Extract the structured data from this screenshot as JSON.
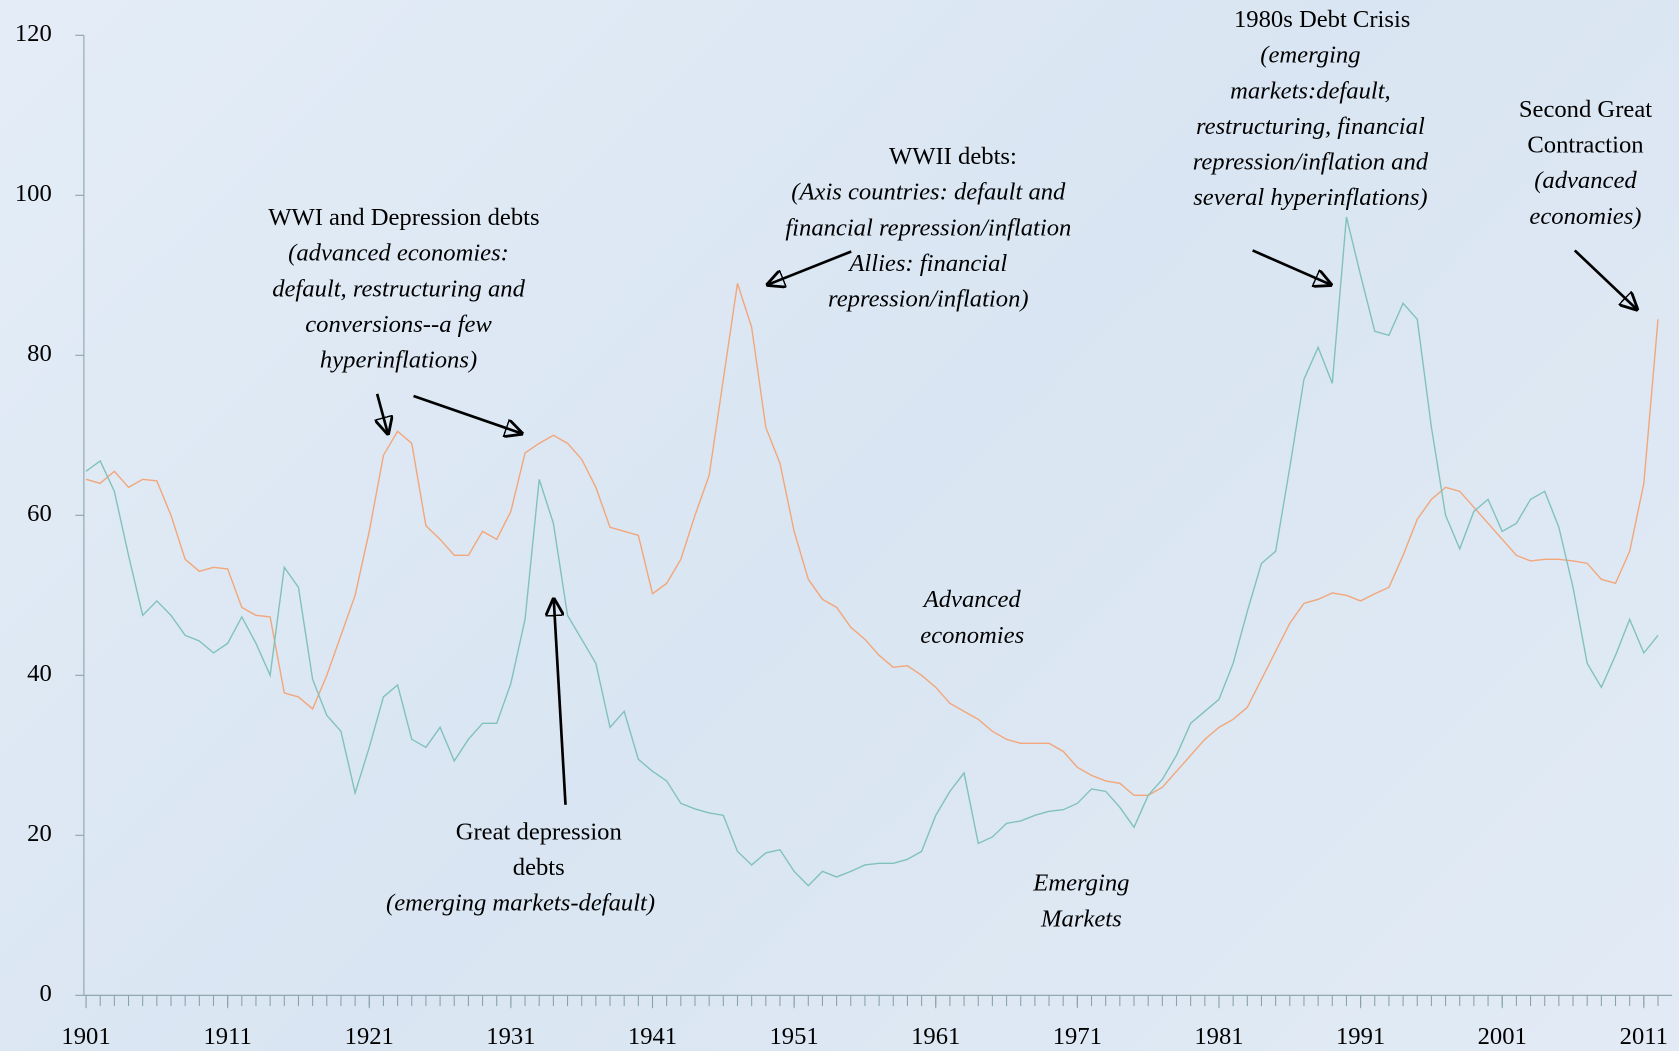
{
  "chart_data": {
    "type": "line",
    "x": [
      1901,
      1902,
      1903,
      1904,
      1905,
      1906,
      1907,
      1908,
      1909,
      1910,
      1911,
      1912,
      1913,
      1914,
      1915,
      1916,
      1917,
      1918,
      1919,
      1920,
      1921,
      1922,
      1923,
      1924,
      1925,
      1926,
      1927,
      1928,
      1929,
      1930,
      1931,
      1932,
      1933,
      1934,
      1935,
      1936,
      1937,
      1938,
      1939,
      1940,
      1941,
      1942,
      1943,
      1944,
      1945,
      1946,
      1947,
      1948,
      1949,
      1950,
      1951,
      1952,
      1953,
      1954,
      1955,
      1956,
      1957,
      1958,
      1959,
      1960,
      1961,
      1962,
      1963,
      1964,
      1965,
      1966,
      1967,
      1968,
      1969,
      1970,
      1971,
      1972,
      1973,
      1974,
      1975,
      1976,
      1977,
      1978,
      1979,
      1980,
      1981,
      1982,
      1983,
      1984,
      1985,
      1986,
      1987,
      1988,
      1989,
      1990,
      1991,
      1992,
      1993,
      1994,
      1995,
      1996,
      1997,
      1998,
      1999,
      2000,
      2001,
      2002,
      2003,
      2004,
      2005,
      2006,
      2007,
      2008,
      2009,
      2010,
      2011,
      2012
    ],
    "series": [
      {
        "name": "Advanced economies",
        "color": "#f2a679",
        "values": [
          64.5,
          64,
          65.5,
          63.5,
          64.5,
          64.3,
          60,
          54.5,
          53,
          53.5,
          53.3,
          48.5,
          47.5,
          47.3,
          37.8,
          37.3,
          35.8,
          40,
          45,
          50,
          58,
          67.5,
          70.5,
          69,
          58.7,
          57,
          55,
          55,
          58,
          57,
          60.5,
          67.8,
          69,
          70,
          69,
          67,
          63.5,
          58.5,
          58,
          57.5,
          50.2,
          51.5,
          54.5,
          60,
          65,
          77,
          89,
          83.5,
          71,
          66.5,
          58,
          52,
          49.5,
          48.5,
          46,
          44.5,
          42.5,
          41,
          41.2,
          40,
          38.5,
          36.5,
          35.5,
          34.5,
          33,
          32,
          31.5,
          31.5,
          31.5,
          30.5,
          28.5,
          27.5,
          26.8,
          26.5,
          25,
          25,
          26,
          28,
          30,
          32,
          33.5,
          34.5,
          36,
          39.5,
          43,
          46.5,
          49,
          49.5,
          50.3,
          50,
          49.3,
          50.2,
          51,
          55,
          59.5,
          62,
          63.5,
          63,
          61,
          59,
          57,
          55,
          54.3,
          54.5,
          54.5,
          54.3,
          54,
          52,
          51.5,
          55.5,
          64,
          84.5
        ]
      },
      {
        "name": "Emerging Markets",
        "color": "#80c2bb",
        "values": [
          65.5,
          66.8,
          63,
          55,
          47.5,
          49.3,
          47.5,
          45,
          44.3,
          42.8,
          44,
          47.3,
          44,
          40,
          53.5,
          51,
          39.5,
          35,
          33,
          25.3,
          31,
          37.3,
          38.8,
          32,
          31,
          33.5,
          29.3,
          32,
          34,
          34,
          39,
          47,
          64.5,
          59,
          47.5,
          44.5,
          41.5,
          33.5,
          35.5,
          29.5,
          28,
          26.8,
          24,
          23.3,
          22.8,
          22.5,
          18,
          16.3,
          17.8,
          18.2,
          15.5,
          13.7,
          15.5,
          14.8,
          15.5,
          16.3,
          16.5,
          16.5,
          17,
          18,
          22.5,
          25.5,
          27.8,
          19,
          19.8,
          21.5,
          21.8,
          22.5,
          23,
          23.2,
          24,
          25.8,
          25.5,
          23.5,
          21,
          25,
          27,
          30,
          34,
          35.5,
          37,
          41.5,
          48,
          54,
          55.5,
          66,
          77,
          81,
          76.5,
          97.3,
          90,
          83,
          82.5,
          86.5,
          84.5,
          71,
          60,
          55.8,
          60.5,
          62,
          58,
          59,
          62,
          63,
          58.5,
          51,
          41.5,
          38.5,
          42.5,
          47,
          42.8,
          45
        ]
      }
    ],
    "xlim": [
      1901,
      2013
    ],
    "xticks": [
      1901,
      1911,
      1921,
      1931,
      1941,
      1951,
      1961,
      1971,
      1981,
      1991,
      2001,
      2011
    ],
    "ylim": [
      0,
      120
    ],
    "yticks": [
      0,
      20,
      40,
      60,
      80,
      100,
      120
    ],
    "annotations": [
      {
        "title": [
          "WWI and Depression debts"
        ],
        "note": [
          "(advanced economies:",
          "default, restructuring and",
          "conversions--a few",
          "hyperinflations)"
        ]
      },
      {
        "title": [
          "WWII debts:"
        ],
        "note": [
          "(Axis countries: default and",
          "financial repression/inflation",
          "Allies: financial",
          "repression/inflation)"
        ]
      },
      {
        "title": [
          "1980s Debt Crisis"
        ],
        "note": [
          "(emerging",
          "markets:default,",
          "restructuring, financial",
          "repression/inflation and",
          "several hyperinflations)"
        ]
      },
      {
        "title": [
          "Second Great",
          "Contraction"
        ],
        "note": [
          "(advanced",
          "economies)"
        ]
      },
      {
        "title": [
          "Great depression",
          "debts"
        ],
        "note": [
          "(emerging markets-default)"
        ]
      },
      {
        "title": [],
        "note": [
          "Advanced",
          "economies"
        ]
      },
      {
        "title": [],
        "note": [
          "Emerging",
          "Markets"
        ]
      }
    ]
  }
}
